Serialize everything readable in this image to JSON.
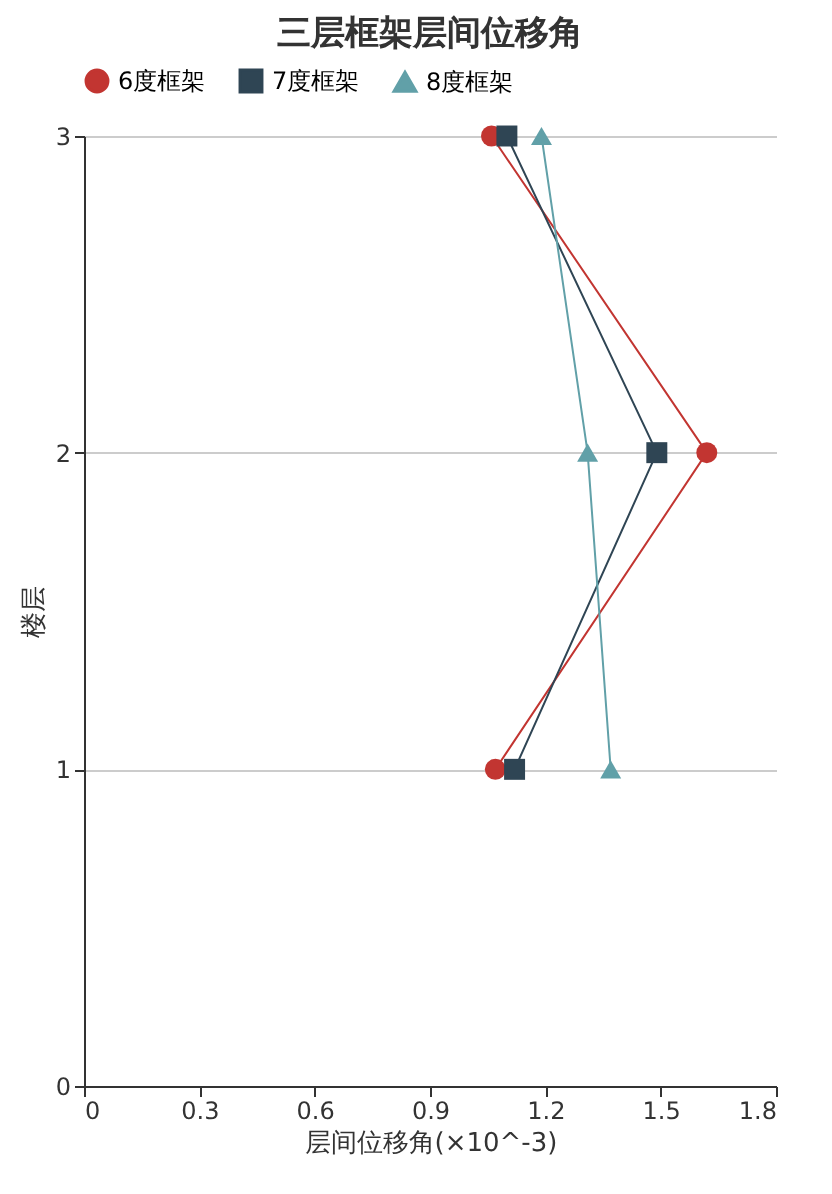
{
  "chart_data": {
    "type": "line",
    "title": "三层框架层间位移角",
    "xlabel": "层间位移角(×10^-3)",
    "ylabel": "楼层",
    "orientation": "horizontal",
    "x": [
      1,
      2,
      3
    ],
    "series": [
      {
        "name": "6度框架",
        "color": "#c23531",
        "marker": "circle",
        "values": [
          1.07,
          1.62,
          1.06
        ]
      },
      {
        "name": "7度框架",
        "color": "#2f4554",
        "marker": "square",
        "values": [
          1.12,
          1.49,
          1.1
        ]
      },
      {
        "name": "8度框架",
        "color": "#61a0a8",
        "marker": "triangle",
        "values": [
          1.37,
          1.31,
          1.19
        ]
      }
    ],
    "xlim": [
      0,
      1.8
    ],
    "xticks": [
      0,
      0.3,
      0.6,
      0.9,
      1.2,
      1.5,
      1.8
    ],
    "ylim": [
      0,
      3
    ],
    "yticks": [
      0,
      1,
      2,
      3
    ],
    "grid": "y",
    "legend": "top"
  }
}
